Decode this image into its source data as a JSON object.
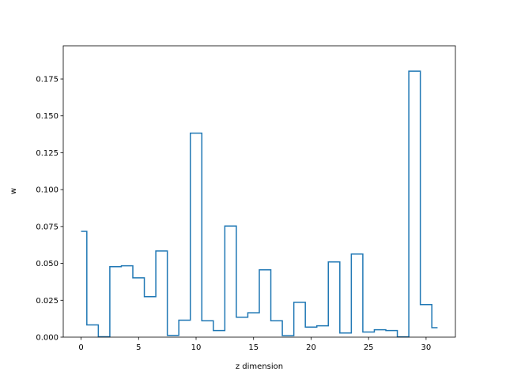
{
  "chart_data": {
    "type": "line",
    "drawstyle": "steps-mid",
    "xlabel": "z dimension",
    "ylabel": "w",
    "xlim": [
      -1.55,
      32.55
    ],
    "ylim": [
      0.0,
      0.1975
    ],
    "xticks": [
      0,
      5,
      10,
      15,
      20,
      25,
      30
    ],
    "yticks": [
      0.0,
      0.025,
      0.05,
      0.075,
      0.1,
      0.125,
      0.15,
      0.175
    ],
    "ytick_labels": [
      "0.000",
      "0.025",
      "0.050",
      "0.075",
      "0.100",
      "0.125",
      "0.150",
      "0.175"
    ],
    "grid": false,
    "series": [
      {
        "color": "#1f77b4",
        "x": [
          0,
          1,
          2,
          3,
          4,
          5,
          6,
          7,
          8,
          9,
          10,
          11,
          12,
          13,
          14,
          15,
          16,
          17,
          18,
          19,
          20,
          21,
          22,
          23,
          24,
          25,
          26,
          27,
          28,
          29,
          30,
          31
        ],
        "values": [
          0.0717,
          0.0083,
          0.0003,
          0.0478,
          0.0484,
          0.0402,
          0.0274,
          0.0584,
          0.0012,
          0.0115,
          0.1383,
          0.0111,
          0.0045,
          0.0753,
          0.0135,
          0.0165,
          0.0456,
          0.0111,
          0.001,
          0.0236,
          0.0068,
          0.0077,
          0.051,
          0.0028,
          0.0563,
          0.0035,
          0.005,
          0.0045,
          0.0002,
          0.1803,
          0.0221,
          0.0064
        ]
      }
    ]
  }
}
